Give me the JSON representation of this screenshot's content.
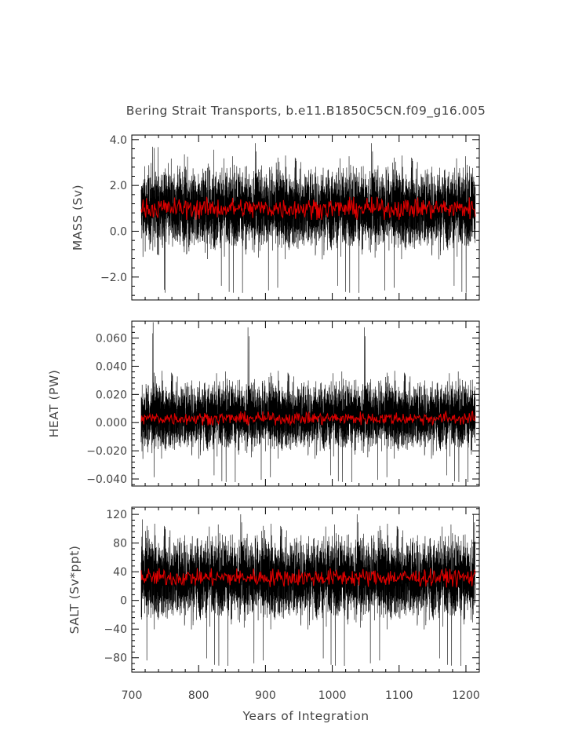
{
  "chart_data": {
    "type": "line",
    "title": "Bering Strait Transports, b.e11.B1850C5CN.f09_g16.005",
    "xlabel": "Years of Integration",
    "xlim": [
      700,
      1220
    ],
    "x_ticks": [
      700,
      800,
      900,
      1000,
      1100,
      1200
    ],
    "x_tick_labels": [
      "700",
      "800",
      "900",
      "1000",
      "1100",
      "1200"
    ],
    "x_range_data": [
      714,
      1214
    ],
    "series_colors": {
      "monthly": "#000000",
      "annual_mean": "#dd0000"
    },
    "panels": [
      {
        "ylabel": "MASS (Sv)",
        "ylim": [
          -3.0,
          4.2
        ],
        "y_ticks": [
          -2.0,
          0.0,
          2.0,
          4.0
        ],
        "y_tick_labels": [
          "−2.0",
          "0.0",
          "2.0",
          "4.0"
        ],
        "monthly_mean": 1.0,
        "monthly_spread": 0.8,
        "monthly_range": [
          -2.8,
          4.1
        ],
        "annual_mean_level": 1.0,
        "annual_range": [
          0.5,
          1.5
        ]
      },
      {
        "ylabel": "HEAT (PW)",
        "ylim": [
          -0.045,
          0.072
        ],
        "y_ticks": [
          -0.04,
          -0.02,
          0.0,
          0.02,
          0.04,
          0.06
        ],
        "y_tick_labels": [
          "−0.040",
          "−0.020",
          "0.000",
          "0.020",
          "0.040",
          "0.060"
        ],
        "monthly_mean": 0.005,
        "monthly_spread": 0.011,
        "monthly_range": [
          -0.044,
          0.072
        ],
        "annual_mean_level": 0.003,
        "annual_range": [
          -0.002,
          0.008
        ]
      },
      {
        "ylabel": "SALT (Sv*ppt)",
        "ylim": [
          -100,
          130
        ],
        "y_ticks": [
          -80,
          -40,
          0,
          40,
          80,
          120
        ],
        "y_tick_labels": [
          "−80",
          "−40",
          "0",
          "40",
          "80",
          "120"
        ],
        "monthly_mean": 32,
        "monthly_spread": 26,
        "monthly_range": [
          -95,
          128
        ],
        "annual_mean_level": 32,
        "annual_range": [
          18,
          45
        ]
      }
    ]
  }
}
